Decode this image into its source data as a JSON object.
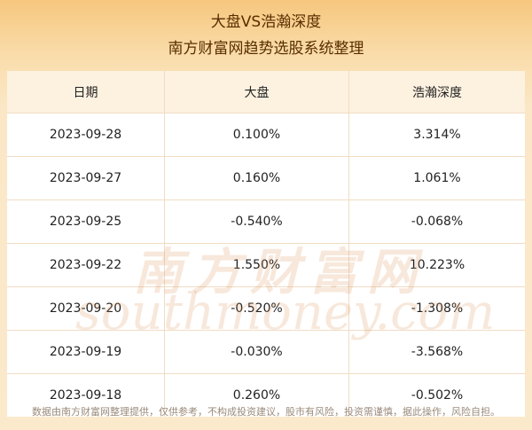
{
  "header": {
    "title": "大盘VS浩瀚深度",
    "subtitle": "南方财富网趋势选股系统整理"
  },
  "table": {
    "columns": [
      "日期",
      "大盘",
      "浩瀚深度"
    ],
    "rows": [
      [
        "2023-09-28",
        "0.100%",
        "3.314%"
      ],
      [
        "2023-09-27",
        "0.160%",
        "1.061%"
      ],
      [
        "2023-09-25",
        "-0.540%",
        "-0.068%"
      ],
      [
        "2023-09-22",
        "1.550%",
        "10.223%"
      ],
      [
        "2023-09-20",
        "-0.520%",
        "-1.308%"
      ],
      [
        "2023-09-19",
        "-0.030%",
        "-3.568%"
      ],
      [
        "2023-09-18",
        "0.260%",
        "-0.502%"
      ]
    ]
  },
  "watermark": {
    "cn": "南方财富网",
    "en": "southmoney.com"
  },
  "footer": "数据由南方财富网整理提供，仅供参考，不构成投资建议，股市有风险，投资需谨慎，据此操作，风险自担。"
}
